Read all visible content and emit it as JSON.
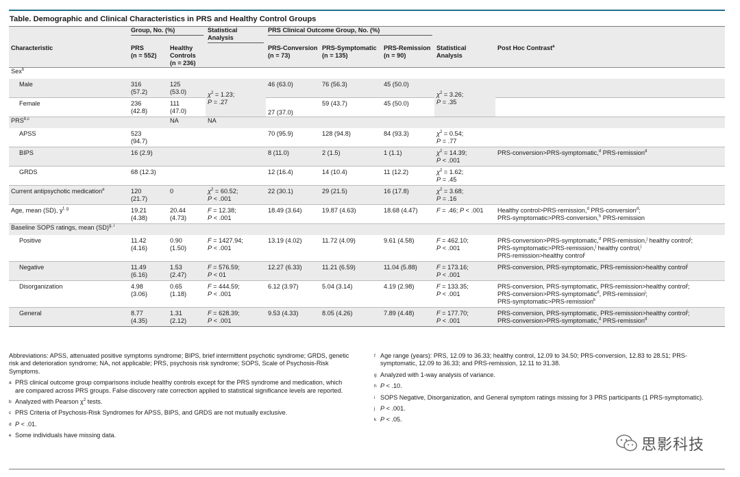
{
  "title": "Table. Demographic and Clinical Characteristics in PRS and Healthy Control Groups",
  "header": {
    "group_label": "Group, No. (%)",
    "stat1_line1": "Statistical",
    "stat1_line2": "Analysis",
    "outcome_label": "PRS Clinical Outcome Group, No. (%)",
    "characteristic": "Characteristic",
    "prs_line1": "PRS",
    "prs_line2": "(n = 552)",
    "hc_line1": "Healthy",
    "hc_line2": "Controls",
    "hc_line3": "(n = 236)",
    "conv_line1": "PRS-Conversion",
    "conv_line2": "(n = 73)",
    "symp_line1": "PRS-Symptomatic",
    "symp_line2": "(n = 135)",
    "rem_line1": "PRS-Remission",
    "rem_line2": "(n = 90)",
    "stat2_line1": "Statistical",
    "stat2_line2": "Analysis",
    "posthoc": "Post Hoc Contrast",
    "posthoc_sup": "a"
  },
  "rows": {
    "sex": {
      "label": "Sex",
      "sup": "b"
    },
    "male": {
      "label": "Male",
      "prs": "316",
      "prs2": "(57.2)",
      "hc": "125",
      "hc2": "(53.0)",
      "conv": "46 (63.0)",
      "symp": "76 (56.3)",
      "rem": "45 (50.0)"
    },
    "sex_stat1": {
      "l1a": "χ",
      "l1sup": "2",
      "l1b": " = 1.23;",
      "l2a": "P",
      "l2b": " = .27"
    },
    "sex_stat2": {
      "l1a": "χ",
      "l1sup": "2",
      "l1b": " = 3.26;",
      "l2a": "P",
      "l2b": " = .35"
    },
    "female": {
      "label": "Female",
      "prs": "236",
      "prs2": "(42.8)",
      "hc": "111",
      "hc2": "(47.0)",
      "conv": "27 (37.0)",
      "symp": "59 (43.7)",
      "rem": "45 (50.0)"
    },
    "prs_head": {
      "label": "PRS",
      "sup": "b,c",
      "hc": "NA",
      "stat1": "NA"
    },
    "apss": {
      "label": "APSS",
      "prs": "523",
      "prs2": "(94.7)",
      "conv": "70 (95.9)",
      "symp": "128 (94.8)",
      "rem": "84 (93.3)",
      "s2a": "χ",
      "s2sup": "2",
      "s2b": " = 0.54;",
      "s2c": "P",
      "s2d": " = .77"
    },
    "bips": {
      "label": "BIPS",
      "prs": "16 (2.9)",
      "conv": "8 (11.0)",
      "symp": "2 (1.5)",
      "rem": "1 (1.1)",
      "s2a": "χ",
      "s2sup": "2",
      "s2b": " = 14.39;",
      "s2c": "P",
      "s2d": " < .001",
      "ph1": "PRS-conversion>PRS-symptomatic,",
      "ph1sup": "d",
      "ph2": " PRS-remission",
      "ph2sup": "d"
    },
    "grds": {
      "label": "GRDS",
      "prs": "68 (12.3)",
      "conv": "12 (16.4)",
      "symp": "14 (10.4)",
      "rem": "11 (12.2)",
      "s2a": "χ",
      "s2sup": "2",
      "s2b": " = 1.62;",
      "s2c": "P",
      "s2d": " = .45"
    },
    "antipsych": {
      "label": "Current antipsychotic medication",
      "sup": "e",
      "prs": "120",
      "prs2": "(21.7)",
      "hc": "0",
      "s1a": "χ",
      "s1sup": "2",
      "s1b": " = 60.52;",
      "s1c": "P",
      "s1d": " < .001",
      "conv": "22 (30.1)",
      "symp": "29 (21.5)",
      "rem": "16 (17.8)",
      "s2a": "χ",
      "s2sup": "2",
      "s2b": " = 3.68;",
      "s2c": "P",
      "s2d": " = .16"
    },
    "age": {
      "label": "Age, mean (SD), y",
      "sup": "f, g",
      "prs": "19.21",
      "prs2": "(4.38)",
      "hc": "20.44",
      "hc2": "(4.73)",
      "s1a": "F",
      "s1b": " = 12.38;",
      "s1c": "P",
      "s1d": " < .001",
      "conv": "18.49 (3.64)",
      "symp": "19.87 (4.63)",
      "rem": "18.68 (4.47)",
      "s2a": "F",
      "s2b": " = .46; ",
      "s2c": "P",
      "s2d": " < .001",
      "ph1": "Healthy control>PRS-remission,",
      "ph1sup": "d",
      "ph2": " PRS-conversion",
      "ph2sup": "d",
      "ph3": ";",
      "ph4": "PRS-symptomatic>PRS-conversion,",
      "ph4sup": "h",
      "ph5": " PRS-remission"
    },
    "sops": {
      "label": "Baseline SOPS ratings, mean (SD)",
      "sup": "g, i"
    },
    "positive": {
      "label": "Positive",
      "prs": "11.42",
      "prs2": "(4.16)",
      "hc": "0.90",
      "hc2": "(1.50)",
      "s1a": "F",
      "s1b": " = 1427.94;",
      "s1c": "P",
      "s1d": " < .001",
      "conv": "13.19 (4.02)",
      "symp": "11.72 (4.09)",
      "rem": "9.61 (4.58)",
      "s2a": "F",
      "s2b": " = 462.10;",
      "s2c": "P",
      "s2d": " < .001",
      "ph1": "PRS-conversion>PRS-symptomatic,",
      "ph1sup": "d",
      "ph2": " PRS-remission,",
      "ph2sup": "j",
      "ph3": " healthy control",
      "ph3sup": "j",
      "ph3b": ";",
      "ph4": "PRS-symptomatic>PRS-remission,",
      "ph4sup": "j",
      "ph5": " healthy control,",
      "ph5sup": "j",
      "ph6": "PRS-remission>healthy control",
      "ph6sup": "j"
    },
    "negative": {
      "label": "Negative",
      "prs": "11.49",
      "prs2": "(6.16)",
      "hc": "1.53",
      "hc2": "(2.47)",
      "s1a": "F",
      "s1b": " = 576.59;",
      "s1c": "P",
      "s1d": " < 01",
      "conv": "12.27 (6.33)",
      "symp": "11.21 (6.59)",
      "rem": "11.04 (5.88)",
      "s2a": "F",
      "s2b": " = 173.16;",
      "s2c": "P",
      "s2d": " < .001",
      "ph1": "PRS-conversion, PRS-symptomatic, PRS-remission>healthy control",
      "ph1sup": "j"
    },
    "disorg": {
      "label": "Disorganization",
      "prs": "4.98",
      "prs2": "(3.06)",
      "hc": "0.65",
      "hc2": "(1.18)",
      "s1a": "F",
      "s1b": " = 444.59;",
      "s1c": "P",
      "s1d": " < .001",
      "conv": "6.12 (3.97)",
      "symp": "5.04 (3.14)",
      "rem": "4.19 (2.98)",
      "s2a": "F",
      "s2b": " = 133.35;",
      "s2c": "P",
      "s2d": " < .001",
      "ph1": "PRS-conversion, PRS-symptomatic, PRS-remission>healthy control",
      "ph1sup": "j",
      "ph1b": ";",
      "ph2": "PRS-conversion>PRS-symptomatic",
      "ph2sup": "d",
      "ph2b": ", PRS-remission",
      "ph2bsup": "j",
      "ph2c": ";",
      "ph3": "PRS-symptomatic>PRS-remission",
      "ph3sup": "k"
    },
    "general": {
      "label": "General",
      "prs": "8.77",
      "prs2": "(4.35)",
      "hc": "1.31",
      "hc2": "(2.12)",
      "s1a": "F",
      "s1b": " = 628.39;",
      "s1c": "P",
      "s1d": " < .001",
      "conv": "9.53 (4.33)",
      "symp": "8.05 (4.26)",
      "rem": "7.89 (4.48)",
      "s2a": "F",
      "s2b": " = 177.70;",
      "s2c": "P",
      "s2d": " < .001",
      "ph1": "PRS-conversion, PRS-symptomatic, PRS-remission>healthy control",
      "ph1sup": "j",
      "ph1b": ";",
      "ph2": "PRS-conversion>PRS-symptomatic,",
      "ph2sup": "d",
      "ph2b": " PRS-remission",
      "ph2bsup": "d"
    }
  },
  "notes": {
    "abbrev": "Abbreviations: APSS, attenuated positive symptoms syndrome; BIPS, brief intermittent psychotic syndrome; GRDS, genetic risk and deterioration syndrome; NA, not applicable; PRS, psychosis risk syndrome; SOPS, Scale of Psychosis-Risk Symptoms.",
    "a_mark": "a",
    "a": "PRS clinical outcome group comparisons include healthy controls except for the PRS syndrome and medication, which are compared across PRS groups. False discovery rate correction applied to statistical significance levels are reported.",
    "b_mark": "b",
    "b1": "Analyzed with Pearson χ",
    "b_sup": "2",
    "b2": " tests.",
    "c_mark": "c",
    "c": "PRS Criteria of Psychosis-Risk Syndromes for APSS, BIPS, and GRDS are not mutually exclusive.",
    "d_mark": "d",
    "d_p": "P",
    "d": " < .01.",
    "e_mark": "e",
    "e": "Some individuals have missing data.",
    "f_mark": "f",
    "f": "Age range (years): PRS, 12.09 to 36.33; healthy control, 12.09 to 34.50; PRS-conversion, 12.83 to 28.51; PRS-symptomatic, 12.09 to 36.33; and PRS-remission, 12.11 to 31.38.",
    "g_mark": "g",
    "g": "Analyzed with 1-way analysis of variance.",
    "h_mark": "h",
    "h_p": "P",
    "h": " < .10.",
    "i_mark": "i",
    "i": "SOPS Negative, Disorganization, and General symptom ratings missing for 3 PRS participants (1 PRS-symptomatic).",
    "j_mark": "j",
    "j_p": "P",
    "j": " < .001.",
    "k_mark": "k",
    "k_p": "P",
    "k": " < .05."
  },
  "watermark": {
    "text": "思影科技",
    "icon": "wechat-icon"
  },
  "colors": {
    "accent_rule": "#1f6f8b",
    "header_bg": "#ebebeb"
  }
}
